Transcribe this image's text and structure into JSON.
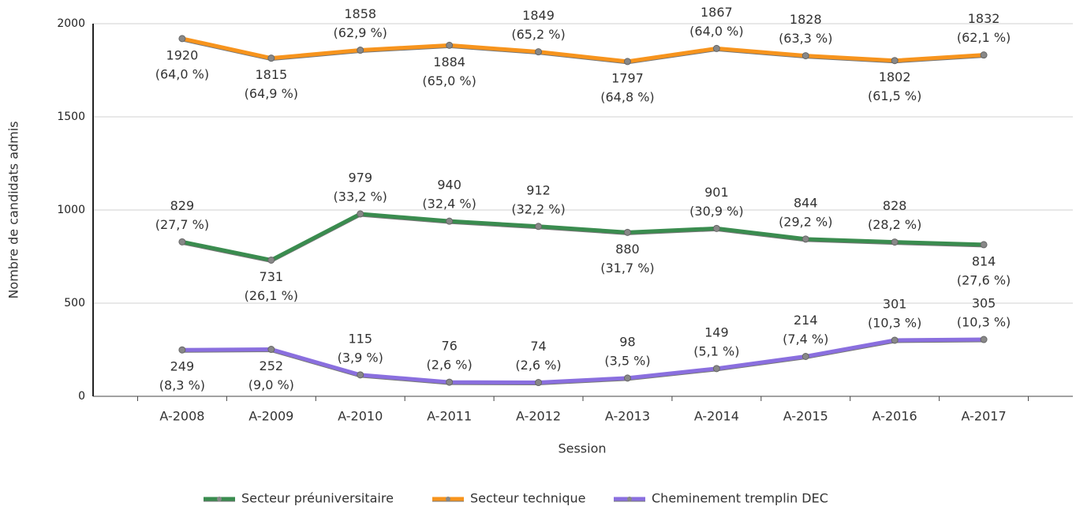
{
  "chart_data": {
    "type": "line",
    "xlabel": "Session",
    "ylabel": "Nombre de candidats admis",
    "categories": [
      "A-2008",
      "A-2009",
      "A-2010",
      "A-2011",
      "A-2012",
      "A-2013",
      "A-2014",
      "A-2015",
      "A-2016",
      "A-2017"
    ],
    "ylim": [
      0,
      2000
    ],
    "yticks": [
      0,
      500,
      1000,
      1500,
      2000
    ],
    "grid": true,
    "legend": "bottom",
    "series": [
      {
        "name": "Secteur préuniversitaire",
        "color": "#3a8c4f",
        "values": [
          829,
          731,
          979,
          940,
          912,
          880,
          901,
          844,
          828,
          814
        ],
        "shares": [
          "(27,7 %)",
          "(26,1 %)",
          "(33,2 %)",
          "(32,4 %)",
          "(32,2 %)",
          "(31,7 %)",
          "(30,9 %)",
          "(29,2 %)",
          "(28,2 %)",
          "(27,6 %)"
        ]
      },
      {
        "name": "Secteur technique",
        "color": "#f7941d",
        "values": [
          1920,
          1815,
          1858,
          1884,
          1849,
          1797,
          1867,
          1828,
          1802,
          1832
        ],
        "shares": [
          "(64,0 %)",
          "(64,9 %)",
          "(62,9 %)",
          "(65,0 %)",
          "(65,2 %)",
          "(64,8 %)",
          "(64,0 %)",
          "(63,3 %)",
          "(61,5 %)",
          "(62,1 %)"
        ]
      },
      {
        "name": "Cheminement tremplin DEC",
        "color": "#8a6fdf",
        "values": [
          249,
          252,
          115,
          76,
          74,
          98,
          149,
          214,
          301,
          305
        ],
        "shares": [
          "(8,3 %)",
          "(9,0 %)",
          "(3,9 %)",
          "(2,6 %)",
          "(2,6 %)",
          "(3,5 %)",
          "(5,1 %)",
          "(7,4 %)",
          "(10,3 %)",
          "(10,3 %)"
        ]
      }
    ]
  }
}
